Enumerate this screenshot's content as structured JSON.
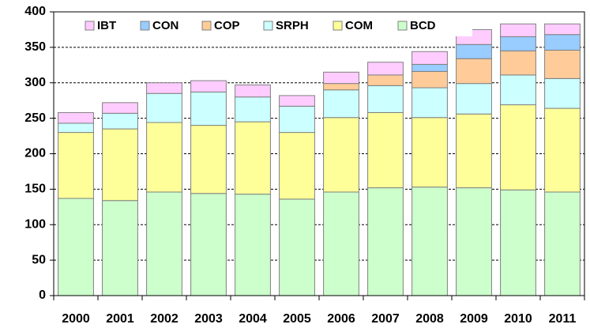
{
  "chart_data": {
    "type": "stacked_bar",
    "categories": [
      "2000",
      "2001",
      "2002",
      "2003",
      "2004",
      "2005",
      "2006",
      "2007",
      "2008",
      "2009",
      "2010",
      "2011"
    ],
    "series": [
      {
        "name": "BCD",
        "color": "#ccffcc",
        "values": [
          137,
          134,
          146,
          144,
          143,
          136,
          146,
          152,
          153,
          152,
          149,
          146
        ]
      },
      {
        "name": "COM",
        "color": "#ffff99",
        "values": [
          93,
          101,
          98,
          96,
          102,
          94,
          105,
          106,
          98,
          104,
          120,
          118
        ]
      },
      {
        "name": "SRPH",
        "color": "#ccffff",
        "values": [
          13,
          22,
          41,
          47,
          35,
          37,
          39,
          38,
          42,
          43,
          42,
          42
        ]
      },
      {
        "name": "COP",
        "color": "#ffcc99",
        "values": [
          0,
          0,
          0,
          0,
          0,
          0,
          9,
          15,
          23,
          35,
          34,
          40
        ]
      },
      {
        "name": "CON",
        "color": "#99ccff",
        "values": [
          0,
          0,
          0,
          0,
          0,
          0,
          0,
          0,
          10,
          20,
          20,
          22
        ]
      },
      {
        "name": "IBT",
        "color": "#ffccff",
        "values": [
          15,
          15,
          15,
          16,
          17,
          15,
          16,
          18,
          18,
          21,
          18,
          15
        ]
      }
    ],
    "ylim": [
      0,
      400
    ],
    "yticks": [
      0,
      50,
      100,
      150,
      200,
      250,
      300,
      350,
      400
    ],
    "grid": true,
    "legend": "top"
  }
}
